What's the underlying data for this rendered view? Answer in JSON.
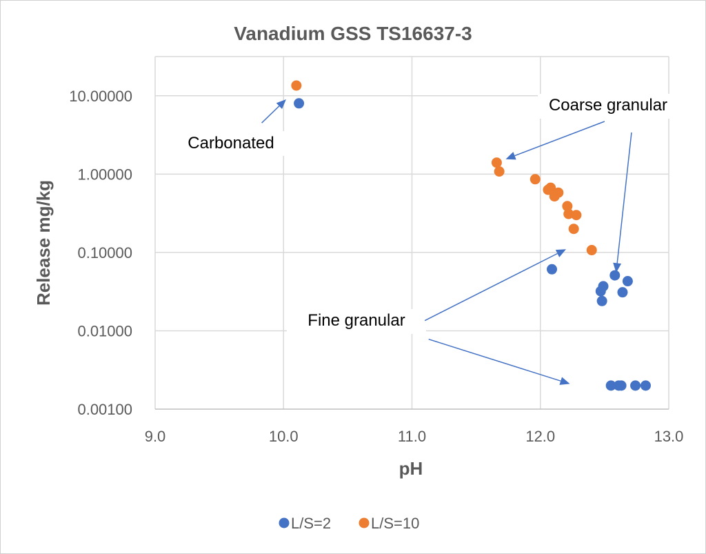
{
  "chart_data": {
    "type": "scatter",
    "title": "Vanadium GSS TS16637-3",
    "xlabel": "pH",
    "ylabel": "Release mg/kg",
    "xlim": [
      9.0,
      13.0
    ],
    "ylim": [
      0.001,
      10.0
    ],
    "yscale": "log",
    "grid": true,
    "legend_position": "bottom",
    "x_ticks": [
      "9.0",
      "10.0",
      "11.0",
      "12.0",
      "13.0"
    ],
    "y_ticks": [
      "0.00100",
      "0.01000",
      "0.10000",
      "1.00000",
      "10.00000"
    ],
    "series": [
      {
        "name": "L/S=2",
        "color": "#4472C4",
        "points": [
          {
            "x": 10.12,
            "y": 8.0
          },
          {
            "x": 12.09,
            "y": 0.061
          },
          {
            "x": 12.47,
            "y": 0.032
          },
          {
            "x": 12.49,
            "y": 0.037
          },
          {
            "x": 12.48,
            "y": 0.024
          },
          {
            "x": 12.58,
            "y": 0.051
          },
          {
            "x": 12.64,
            "y": 0.031
          },
          {
            "x": 12.68,
            "y": 0.043
          },
          {
            "x": 12.55,
            "y": 0.002
          },
          {
            "x": 12.61,
            "y": 0.002
          },
          {
            "x": 12.63,
            "y": 0.002
          },
          {
            "x": 12.74,
            "y": 0.002
          },
          {
            "x": 12.82,
            "y": 0.002
          }
        ]
      },
      {
        "name": "L/S=10",
        "color": "#ED7D31",
        "points": [
          {
            "x": 10.1,
            "y": 13.5
          },
          {
            "x": 11.66,
            "y": 1.4
          },
          {
            "x": 11.68,
            "y": 1.08
          },
          {
            "x": 11.96,
            "y": 0.86
          },
          {
            "x": 12.06,
            "y": 0.63
          },
          {
            "x": 12.08,
            "y": 0.67
          },
          {
            "x": 12.11,
            "y": 0.52
          },
          {
            "x": 12.14,
            "y": 0.58
          },
          {
            "x": 12.21,
            "y": 0.39
          },
          {
            "x": 12.22,
            "y": 0.31
          },
          {
            "x": 12.28,
            "y": 0.3
          },
          {
            "x": 12.26,
            "y": 0.2
          },
          {
            "x": 12.4,
            "y": 0.107
          }
        ]
      }
    ],
    "annotations": [
      {
        "text": "Carbonated",
        "arrows": [
          {
            "from": [
              9.83,
              4.5
            ],
            "to": [
              10.02,
              9.0
            ]
          }
        ]
      },
      {
        "text": "Coarse granular",
        "arrows": [
          {
            "from": [
              12.5,
              4.7
            ],
            "to": [
              11.73,
              1.55
            ]
          },
          {
            "from": [
              12.71,
              3.4
            ],
            "to": [
              12.59,
              0.055
            ]
          }
        ]
      },
      {
        "text": "Fine granular",
        "arrows": [
          {
            "from": [
              11.1,
              0.0135
            ],
            "to": [
              12.2,
              0.11
            ]
          },
          {
            "from": [
              11.13,
              0.0078
            ],
            "to": [
              12.23,
              0.0021
            ]
          }
        ]
      }
    ]
  }
}
